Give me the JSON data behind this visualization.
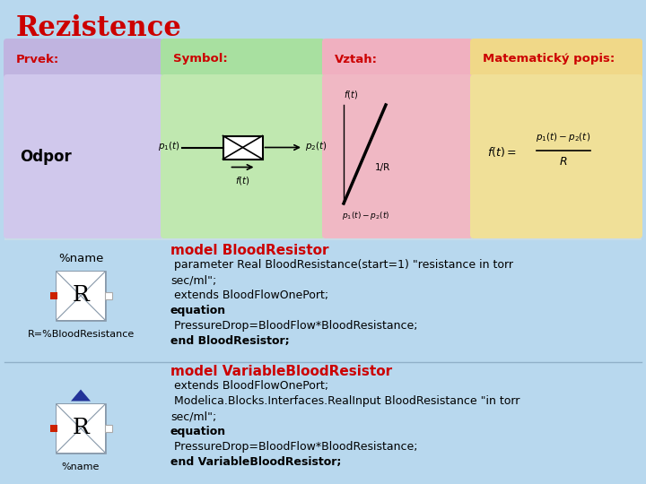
{
  "title": "Rezistence",
  "title_color": "#cc0000",
  "bg_color": "#b8d8ee",
  "header_labels": [
    "Prvek:",
    "Symbol:",
    "Vztah:",
    "Matematický popis:"
  ],
  "header_colors": [
    "#c0b4e0",
    "#a8e0a0",
    "#f0b0c0",
    "#f0d888"
  ],
  "header_text_color": "#cc0000",
  "row_label": "Odpor",
  "prvek_bg": "#d0c8ec",
  "symbol_bg": "#c0e8b0",
  "vztah_bg": "#f0b8c4",
  "math_bg": "#f0e098",
  "lower_bg": "#b8d8ee",
  "code_title_color": "#cc0000",
  "code_block1_title": "model BloodResistor",
  "code_block1": [
    [
      " parameter Real BloodResistance(start=1) \"resistance in torr",
      false
    ],
    [
      "sec/ml\";",
      false
    ],
    [
      " extends BloodFlowOnePort;",
      false
    ],
    [
      "equation",
      true
    ],
    [
      " PressureDrop=BloodFlow*BloodResistance;",
      false
    ],
    [
      "end BloodResistor;",
      true
    ]
  ],
  "code_block2_title": "model VariableBloodResistor",
  "code_block2": [
    [
      " extends BloodFlowOnePort;",
      false
    ],
    [
      " Modelica.Blocks.Interfaces.RealInput BloodResistance \"in torr",
      false
    ],
    [
      "sec/ml\";",
      false
    ],
    [
      "equation",
      true
    ],
    [
      " PressureDrop=BloodFlow*BloodResistance;",
      false
    ],
    [
      "end VariableBloodResistor;",
      true
    ]
  ],
  "icon_bg": "#c0ccd8",
  "icon_tri_color": "white",
  "icon_border": "#8899aa",
  "red_sq": "#cc2200",
  "blue_tri": "#223399"
}
